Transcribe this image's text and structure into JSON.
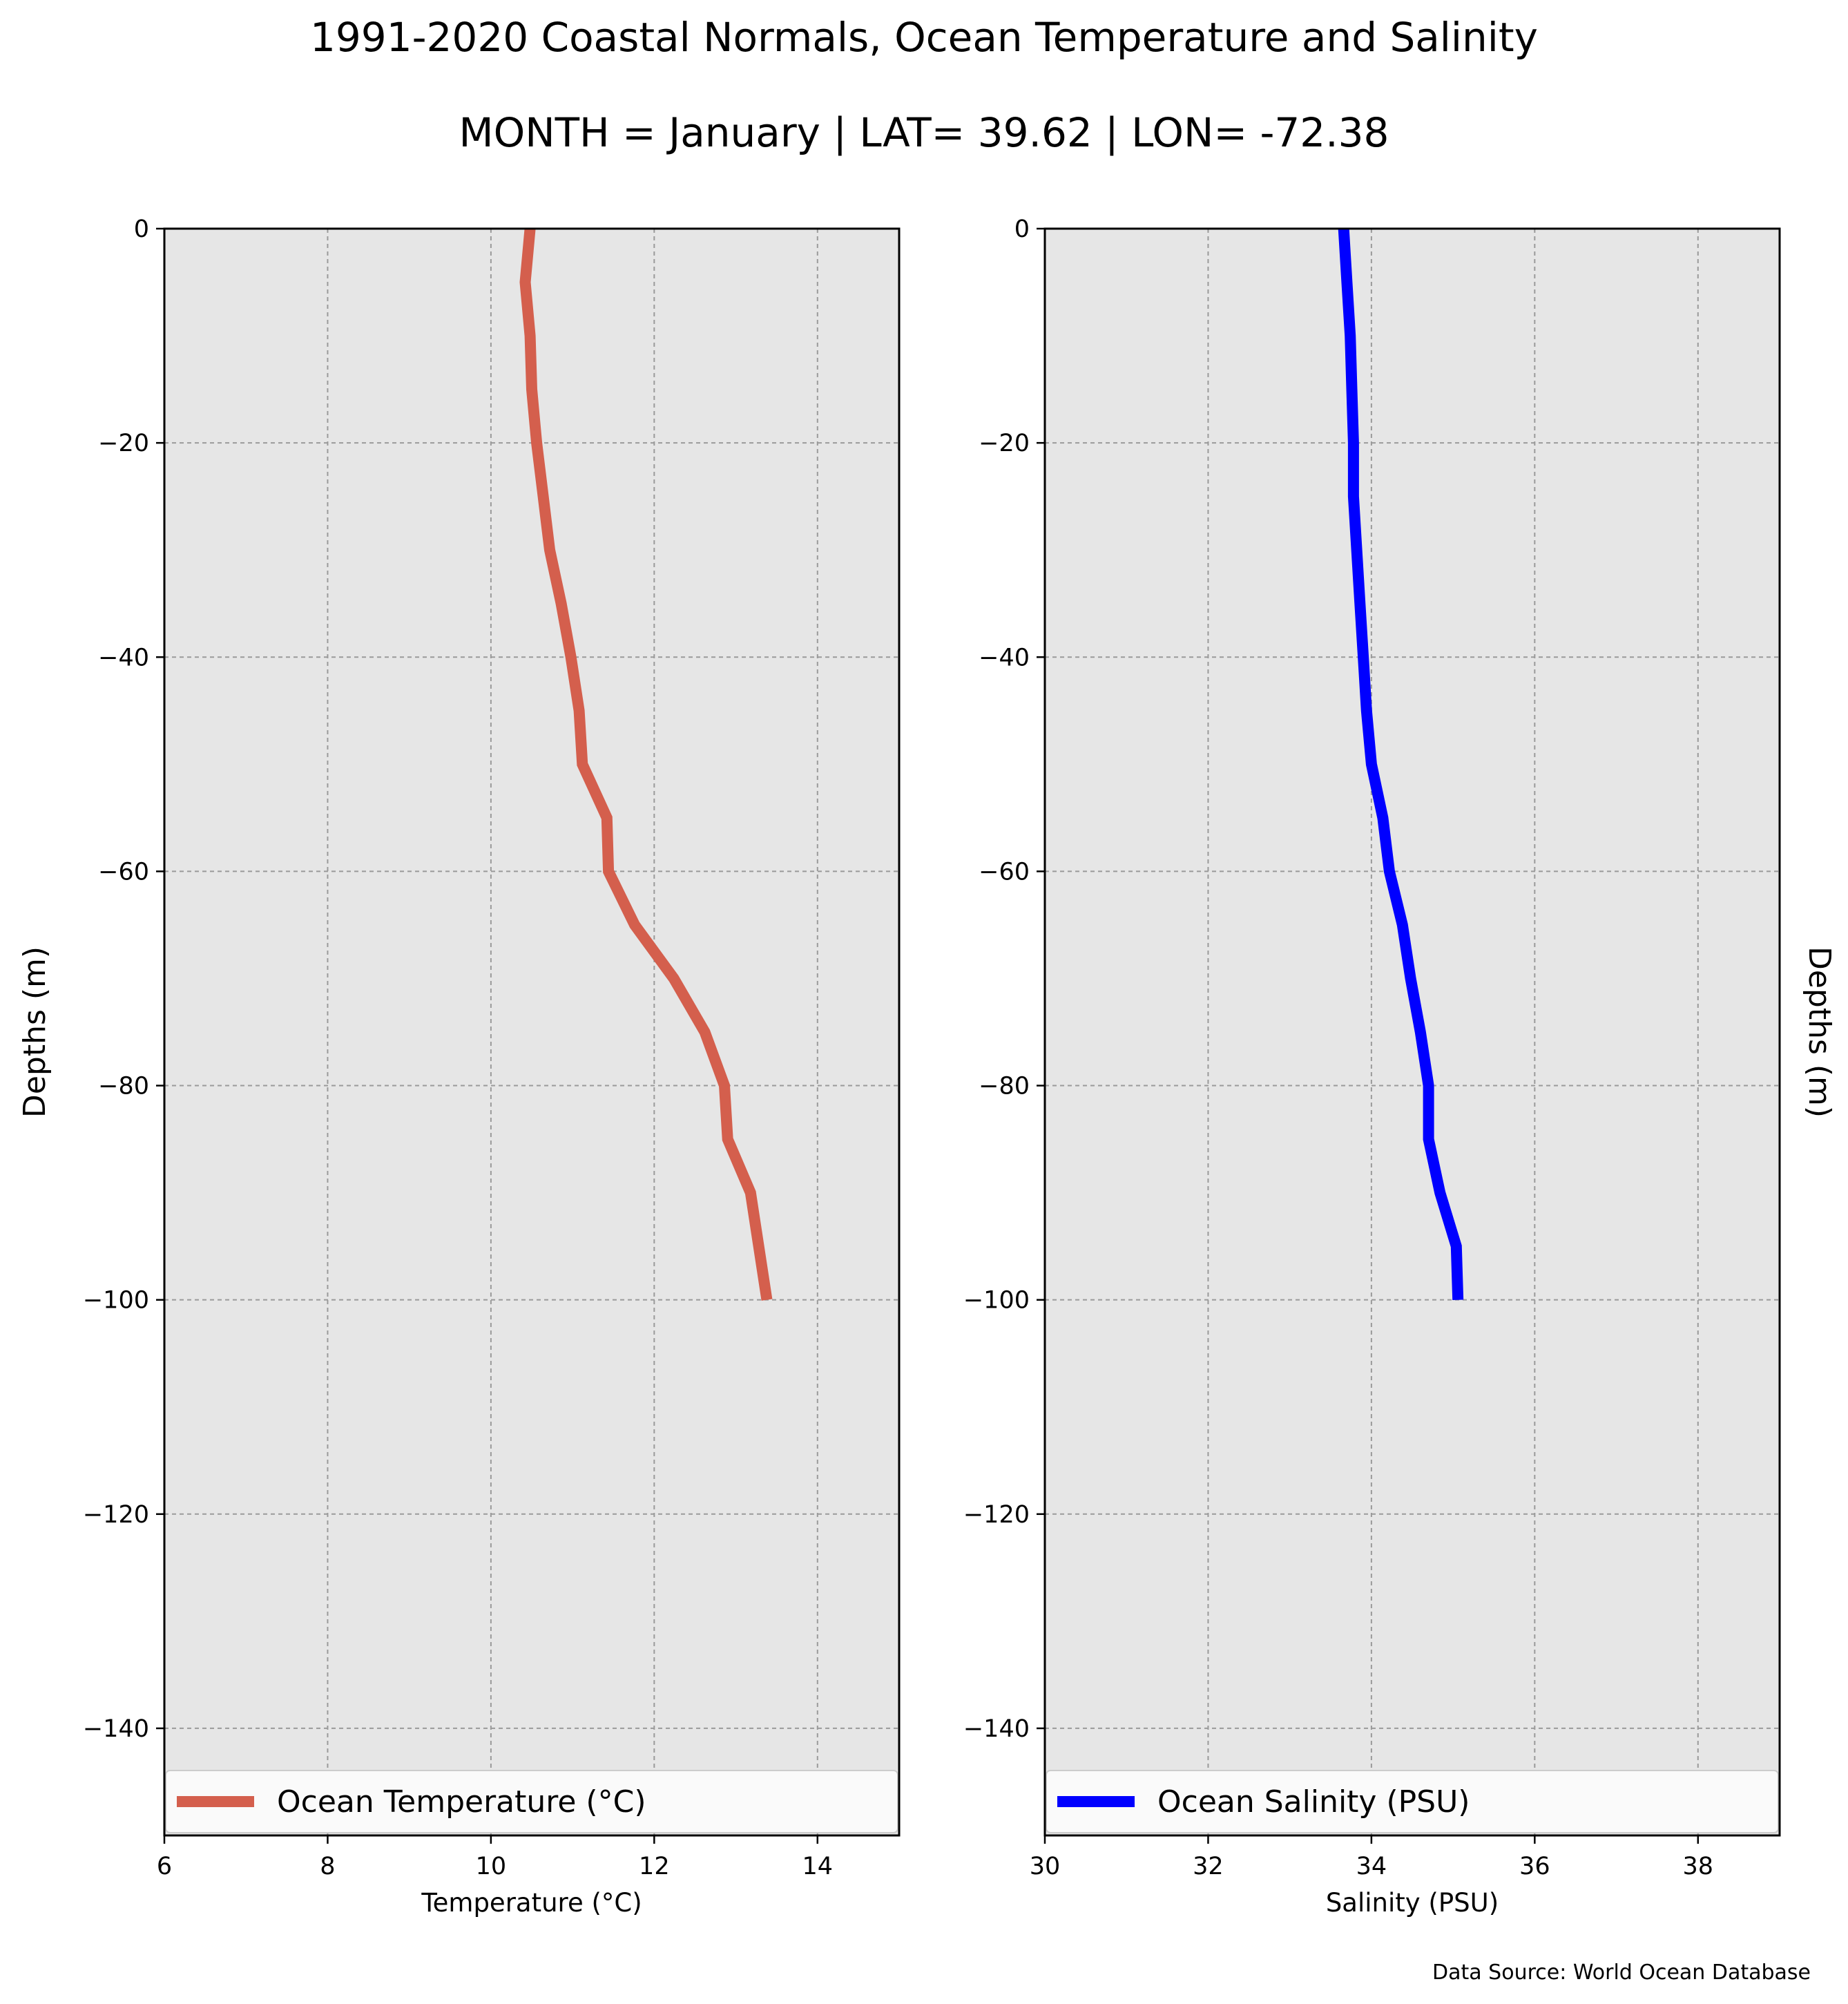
{
  "title": "1991-2020 Coastal Normals, Ocean Temperature and Salinity",
  "subtitle": "MONTH = January | LAT= 39.62 | LON= -72.38",
  "source": "Data Source: World Ocean Database",
  "chart_data": [
    {
      "type": "line",
      "xlabel": "Temperature ($^\\circ$C)",
      "ylabel": "Depths (m)",
      "xlim": [
        6,
        15
      ],
      "ylim": [
        -150,
        0
      ],
      "xticks": [
        6,
        8,
        10,
        12,
        14
      ],
      "yticks": [
        0,
        -20,
        -40,
        -60,
        -80,
        -100,
        -120,
        -140
      ],
      "grid": true,
      "legend_position": "bottom",
      "series": [
        {
          "name": "Ocean Temperature ($^\\circ$C)",
          "color": "#d45f4d",
          "x": [
            10.48,
            10.42,
            10.48,
            10.5,
            10.56,
            10.64,
            10.72,
            10.86,
            10.98,
            11.08,
            11.12,
            11.42,
            11.44,
            11.76,
            12.24,
            12.62,
            12.86,
            12.9,
            13.18,
            13.38
          ],
          "y": [
            0,
            -5,
            -10,
            -15,
            -20,
            -25,
            -30,
            -35,
            -40,
            -45,
            -50,
            -55,
            -60,
            -65,
            -70,
            -75,
            -80,
            -85,
            -90,
            -100
          ]
        }
      ]
    },
    {
      "type": "line",
      "xlabel": "Salinity (PSU)",
      "ylabel": "Depths (m)",
      "xlim": [
        30,
        39
      ],
      "ylim": [
        -150,
        0
      ],
      "xticks": [
        30,
        32,
        34,
        36,
        38
      ],
      "yticks": [
        0,
        -20,
        -40,
        -60,
        -80,
        -100,
        -120,
        -140
      ],
      "grid": true,
      "legend_position": "bottom",
      "series": [
        {
          "name": "Ocean Salinity (PSU)",
          "color": "#0000ff",
          "x": [
            33.66,
            33.7,
            33.74,
            33.76,
            33.78,
            33.78,
            33.82,
            33.86,
            33.9,
            33.94,
            34.0,
            34.14,
            34.22,
            34.38,
            34.48,
            34.6,
            34.7,
            34.7,
            34.84,
            35.04,
            35.06
          ],
          "y": [
            0,
            -5,
            -10,
            -15,
            -20,
            -25,
            -30,
            -35,
            -40,
            -45,
            -50,
            -55,
            -60,
            -65,
            -70,
            -75,
            -80,
            -85,
            -90,
            -95,
            -100
          ]
        }
      ]
    }
  ]
}
